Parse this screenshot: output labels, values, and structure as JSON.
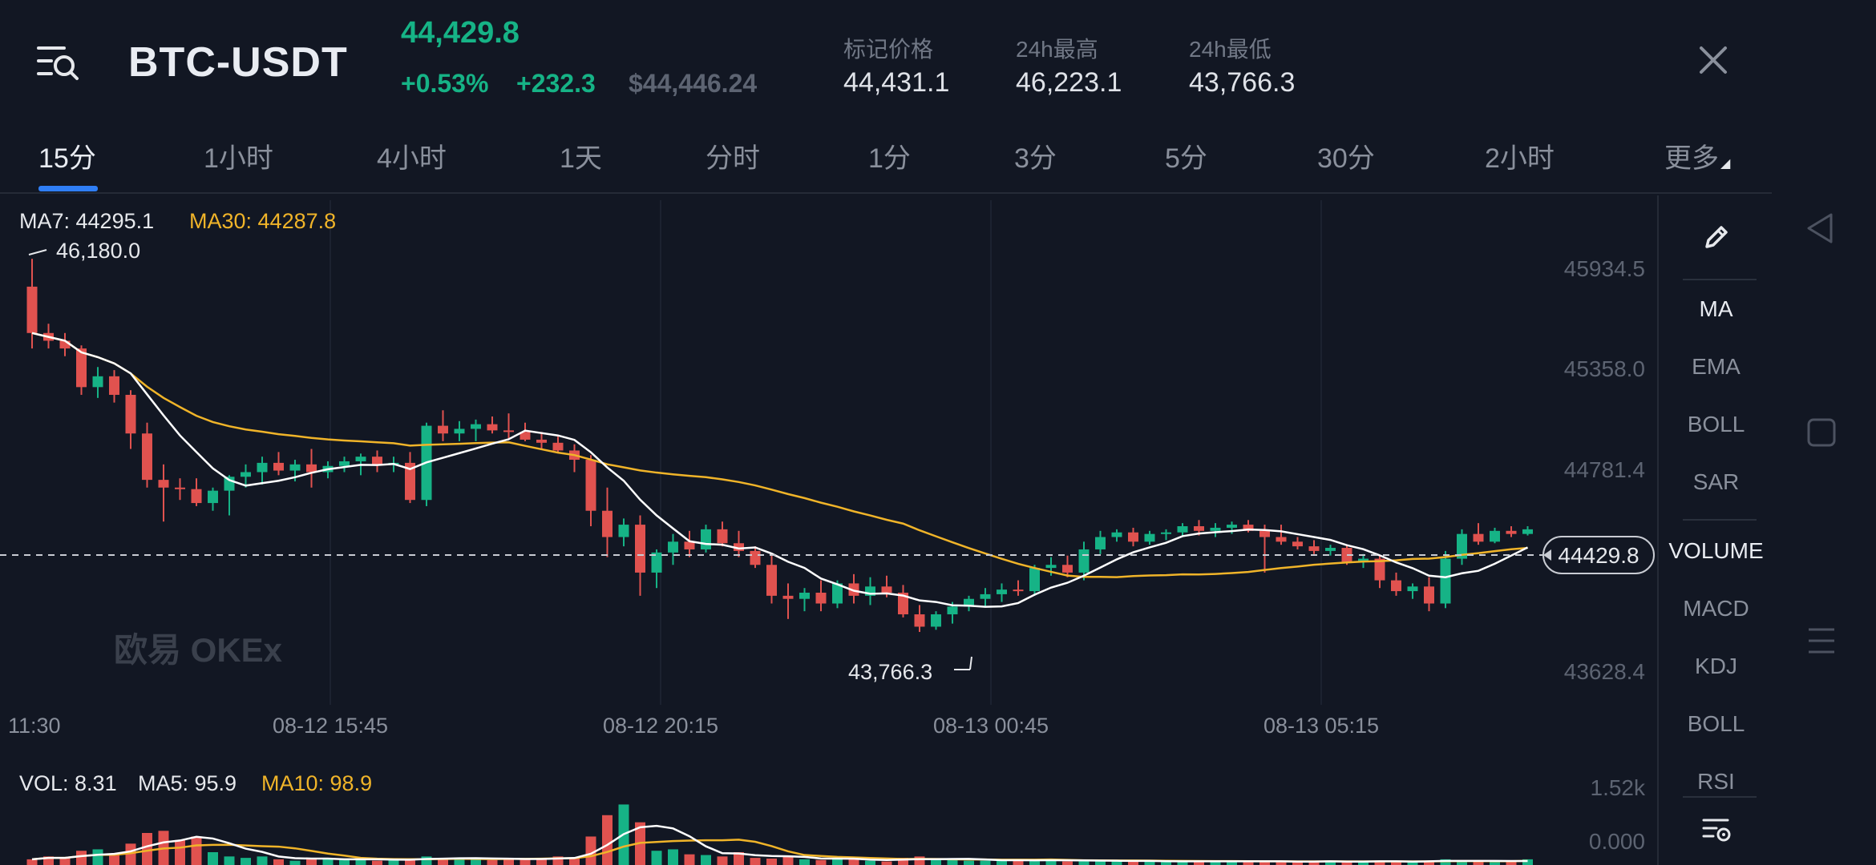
{
  "header": {
    "pair": "BTC-USDT",
    "last_price": "44,429.8",
    "change_pct": "+0.53%",
    "change_abs": "+232.3",
    "usd_price": "$44,446.24",
    "stats": [
      {
        "label": "标记价格",
        "value": "44,431.1"
      },
      {
        "label": "24h最高",
        "value": "46,223.1"
      },
      {
        "label": "24h最低",
        "value": "43,766.3"
      }
    ]
  },
  "tabs": [
    {
      "label": "15分"
    },
    {
      "label": "1小时"
    },
    {
      "label": "4小时"
    },
    {
      "label": "1天"
    },
    {
      "label": "分时"
    },
    {
      "label": "1分"
    },
    {
      "label": "3分"
    },
    {
      "label": "5分"
    },
    {
      "label": "30分"
    },
    {
      "label": "2小时"
    },
    {
      "label": "更多"
    }
  ],
  "active_tab": "15分",
  "chart": {
    "ma7_label": "MA7: 44295.1",
    "ma30_label": "MA30: 44287.8",
    "high_marker": "46,180.0",
    "low_marker": "43,766.3",
    "watermark": "欧易 OKEx",
    "y_ticks": [
      "45934.5",
      "45358.0",
      "44781.4",
      "43628.4"
    ],
    "current_price_tag": "44429.8",
    "x_ticks": [
      "11:30",
      "08-12 15:45",
      "08-12 20:15",
      "08-13 00:45",
      "08-13 05:15"
    ],
    "vol_label": "VOL: 8.31",
    "vol_ma5_label": "MA5: 95.9",
    "vol_ma10_label": "MA10: 98.9",
    "vol_y_ticks": [
      "1.52k",
      "0.000"
    ]
  },
  "toolbar": {
    "items": [
      "MA",
      "EMA",
      "BOLL",
      "SAR",
      "VOLUME",
      "MACD",
      "KDJ",
      "BOLL",
      "RSI"
    ]
  },
  "colors": {
    "up": "#16b386",
    "down": "#e0524f",
    "ma7": "#ffffff",
    "ma30": "#f0b429",
    "accent": "#2f7ef5",
    "background": "#121723"
  },
  "chart_data": {
    "type": "candlestick",
    "y_range": [
      43450,
      46300
    ],
    "ma7": 44295.1,
    "ma30": 44287.8,
    "last": 44429.8,
    "candles": [
      [
        46000,
        46180,
        45600,
        45700
      ],
      [
        45700,
        45760,
        45600,
        45650
      ],
      [
        45650,
        45700,
        45550,
        45600
      ],
      [
        45600,
        45620,
        45300,
        45350
      ],
      [
        45350,
        45480,
        45280,
        45420
      ],
      [
        45420,
        45460,
        45250,
        45300
      ],
      [
        45300,
        45330,
        44950,
        45050
      ],
      [
        45050,
        45120,
        44700,
        44750
      ],
      [
        44750,
        44850,
        44480,
        44700
      ],
      [
        44700,
        44760,
        44620,
        44690
      ],
      [
        44690,
        44760,
        44580,
        44600
      ],
      [
        44600,
        44700,
        44550,
        44680
      ],
      [
        44680,
        44780,
        44520,
        44770
      ],
      [
        44770,
        44850,
        44700,
        44800
      ],
      [
        44800,
        44900,
        44720,
        44860
      ],
      [
        44860,
        44930,
        44780,
        44810
      ],
      [
        44810,
        44880,
        44740,
        44850
      ],
      [
        44850,
        44950,
        44700,
        44800
      ],
      [
        44800,
        44870,
        44760,
        44840
      ],
      [
        44840,
        44900,
        44800,
        44870
      ],
      [
        44870,
        44920,
        44780,
        44900
      ],
      [
        44900,
        44940,
        44800,
        44850
      ],
      [
        44850,
        44900,
        44800,
        44860
      ],
      [
        44860,
        44930,
        44600,
        44620
      ],
      [
        44620,
        45120,
        44580,
        45100
      ],
      [
        45100,
        45200,
        45000,
        45050
      ],
      [
        45050,
        45130,
        45000,
        45080
      ],
      [
        45080,
        45140,
        45000,
        45110
      ],
      [
        45110,
        45160,
        45050,
        45070
      ],
      [
        45070,
        45180,
        45020,
        45060
      ],
      [
        45060,
        45120,
        45000,
        45010
      ],
      [
        45010,
        45060,
        44950,
        44990
      ],
      [
        44990,
        45030,
        44930,
        44940
      ],
      [
        44940,
        44980,
        44800,
        44880
      ],
      [
        44880,
        44910,
        44450,
        44550
      ],
      [
        44550,
        44700,
        44250,
        44380
      ],
      [
        44380,
        44500,
        44320,
        44460
      ],
      [
        44460,
        44520,
        44000,
        44150
      ],
      [
        44150,
        44300,
        44050,
        44280
      ],
      [
        44280,
        44400,
        44200,
        44350
      ],
      [
        44350,
        44420,
        44250,
        44300
      ],
      [
        44300,
        44460,
        44280,
        44430
      ],
      [
        44430,
        44480,
        44320,
        44340
      ],
      [
        44340,
        44420,
        44250,
        44290
      ],
      [
        44290,
        44320,
        44180,
        44200
      ],
      [
        44200,
        44260,
        43950,
        44000
      ],
      [
        44000,
        44080,
        43850,
        43980
      ],
      [
        43980,
        44050,
        43900,
        44020
      ],
      [
        44020,
        44100,
        43900,
        43950
      ],
      [
        43950,
        44100,
        43920,
        44080
      ],
      [
        44080,
        44140,
        43950,
        44000
      ],
      [
        44000,
        44120,
        43940,
        44060
      ],
      [
        44060,
        44130,
        43990,
        44020
      ],
      [
        44020,
        44070,
        43860,
        43880
      ],
      [
        43880,
        43940,
        43766,
        43800
      ],
      [
        43800,
        43900,
        43780,
        43880
      ],
      [
        43880,
        43960,
        43820,
        43930
      ],
      [
        43930,
        44000,
        43900,
        43980
      ],
      [
        43980,
        44050,
        43930,
        44010
      ],
      [
        44010,
        44080,
        43960,
        44040
      ],
      [
        44040,
        44100,
        44000,
        44030
      ],
      [
        44030,
        44200,
        44000,
        44180
      ],
      [
        44180,
        44250,
        44130,
        44200
      ],
      [
        44200,
        44260,
        44120,
        44150
      ],
      [
        44150,
        44350,
        44100,
        44300
      ],
      [
        44300,
        44420,
        44270,
        44380
      ],
      [
        44380,
        44430,
        44350,
        44410
      ],
      [
        44410,
        44440,
        44320,
        44350
      ],
      [
        44350,
        44420,
        44330,
        44400
      ],
      [
        44400,
        44430,
        44360,
        44410
      ],
      [
        44410,
        44470,
        44380,
        44450
      ],
      [
        44450,
        44490,
        44390,
        44420
      ],
      [
        44420,
        44470,
        44380,
        44440
      ],
      [
        44440,
        44480,
        44400,
        44460
      ],
      [
        44460,
        44490,
        44410,
        44420
      ],
      [
        44420,
        44460,
        44150,
        44380
      ],
      [
        44380,
        44460,
        44330,
        44350
      ],
      [
        44350,
        44380,
        44300,
        44320
      ],
      [
        44320,
        44360,
        44270,
        44290
      ],
      [
        44290,
        44330,
        44260,
        44310
      ],
      [
        44310,
        44330,
        44200,
        44220
      ],
      [
        44220,
        44270,
        44180,
        44240
      ],
      [
        44240,
        44260,
        44050,
        44100
      ],
      [
        44100,
        44150,
        44000,
        44030
      ],
      [
        44030,
        44080,
        43980,
        44060
      ],
      [
        44060,
        44120,
        43900,
        43950
      ],
      [
        43950,
        44290,
        43920,
        44240
      ],
      [
        44240,
        44430,
        44200,
        44400
      ],
      [
        44400,
        44470,
        44330,
        44350
      ],
      [
        44350,
        44440,
        44340,
        44420
      ],
      [
        44420,
        44450,
        44380,
        44400
      ],
      [
        44400,
        44450,
        44390,
        44430
      ]
    ],
    "volumes": [
      8,
      12,
      10,
      20,
      22,
      14,
      30,
      45,
      48,
      35,
      40,
      18,
      12,
      10,
      12,
      8,
      6,
      9,
      10,
      7,
      8,
      6,
      7,
      9,
      12,
      10,
      9,
      8,
      7,
      10,
      8,
      9,
      12,
      10,
      40,
      70,
      85,
      60,
      20,
      22,
      15,
      14,
      12,
      18,
      10,
      9,
      12,
      8,
      7,
      9,
      8,
      6,
      5,
      10,
      12,
      8,
      7,
      6,
      6,
      7,
      8,
      6,
      7,
      5,
      6,
      7,
      5,
      6,
      5,
      4,
      6,
      5,
      6,
      5,
      4,
      6,
      5,
      4,
      5,
      6,
      4,
      5,
      6,
      5,
      4,
      6,
      8,
      6,
      5,
      4,
      5,
      8
    ]
  }
}
